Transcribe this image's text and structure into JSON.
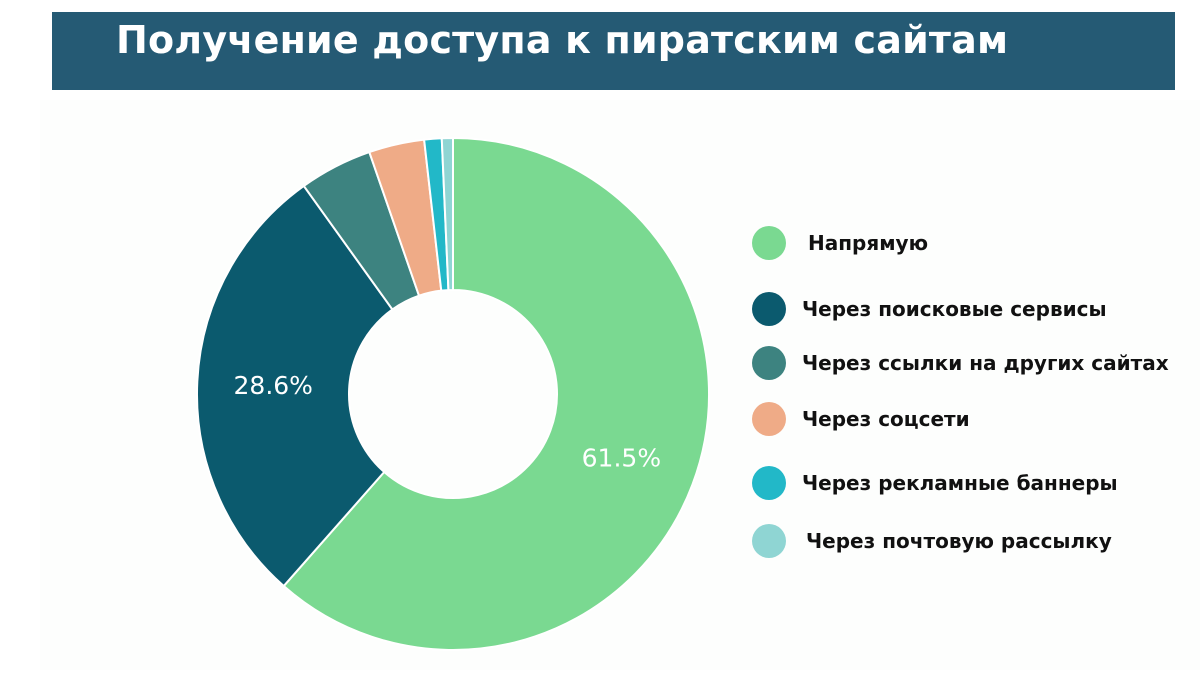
{
  "title": "Получение доступа к пиратским сайтам",
  "colors": {
    "banner": "#255a74",
    "title_text": "#ffffff"
  },
  "chart_data": {
    "type": "pie",
    "donut": true,
    "title": "Получение доступа к пиратским сайтам",
    "legend_position": "right",
    "slices": [
      {
        "name": "Напрямую",
        "value": 61.5,
        "color": "#7ad991",
        "label": "61.5%"
      },
      {
        "name": "Через поисковые сервисы",
        "value": 28.6,
        "color": "#0b5a6e",
        "label": "28.6%"
      },
      {
        "name": "Через ссылки на других сайтах",
        "value": 4.6,
        "color": "#3d8380",
        "label": ""
      },
      {
        "name": "Через соцсети",
        "value": 3.5,
        "color": "#efab87",
        "label": ""
      },
      {
        "name": "Через рекламные баннеры",
        "value": 1.1,
        "color": "#22b8c8",
        "label": ""
      },
      {
        "name": "Через почтовую рассылку",
        "value": 0.7,
        "color": "#8fd5d3",
        "label": ""
      }
    ]
  }
}
